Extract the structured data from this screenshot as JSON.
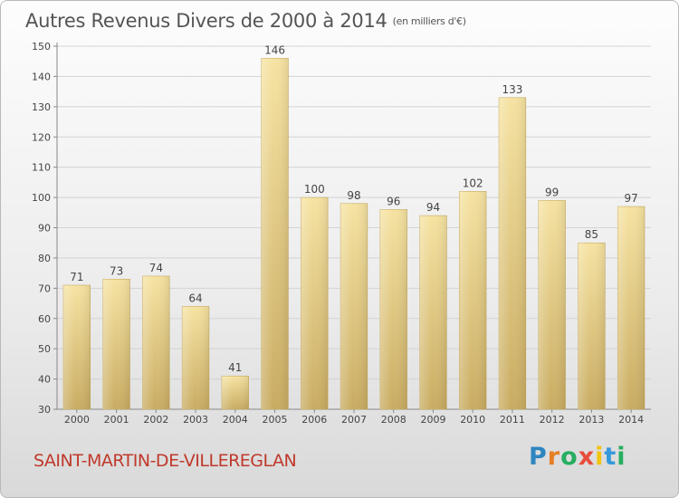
{
  "header": {
    "title": "Autres Revenus Divers de 2000 à 2014",
    "unit": "(en milliers d'€)"
  },
  "footer": {
    "town": "SAINT-MARTIN-DE-VILLEREGLAN",
    "logo_letters": [
      "P",
      "r",
      "o",
      "x",
      "i",
      "t",
      "i"
    ],
    "logo_colors": [
      "#2e86c1",
      "#e67e22",
      "#27ae60",
      "#e74c3c",
      "#f1c40f",
      "#3498db",
      "#27ae60"
    ]
  },
  "chart_data": {
    "type": "bar",
    "title": "Autres Revenus Divers de 2000 à 2014",
    "categories": [
      "2000",
      "2001",
      "2002",
      "2003",
      "2004",
      "2005",
      "2006",
      "2007",
      "2008",
      "2009",
      "2010",
      "2011",
      "2012",
      "2013",
      "2014"
    ],
    "values": [
      71,
      73,
      74,
      64,
      41,
      146,
      100,
      98,
      96,
      94,
      102,
      133,
      99,
      85,
      97
    ],
    "ylim": [
      30,
      150
    ],
    "yticks": [
      30,
      40,
      50,
      60,
      70,
      80,
      90,
      100,
      110,
      120,
      130,
      140,
      150
    ],
    "grid": true,
    "bar_color": "#e6cf86"
  }
}
